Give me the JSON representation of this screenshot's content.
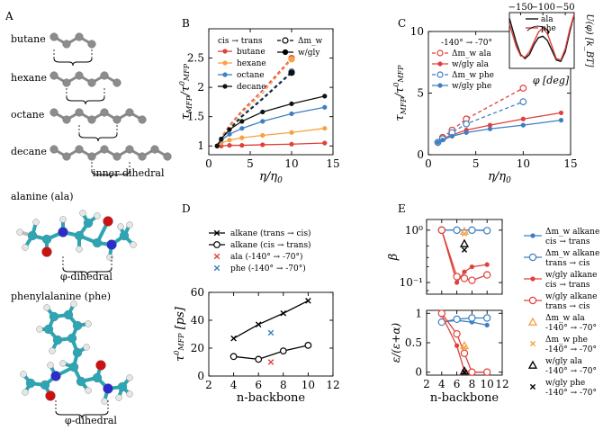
{
  "panels": {
    "A": {
      "label": "A",
      "alkanes": [
        {
          "name": "butane",
          "atoms": 4,
          "span": [
            0,
            3
          ]
        },
        {
          "name": "hexane",
          "atoms": 6,
          "span": [
            1,
            4
          ]
        },
        {
          "name": "octane",
          "atoms": 8,
          "span": [
            2,
            5
          ]
        },
        {
          "name": "decane",
          "atoms": 10,
          "span": [
            3,
            6
          ]
        }
      ],
      "inner_label": "inner dihedral",
      "ala_title": "alanine (ala)",
      "phe_title": "phenylalanine (phe)",
      "phi_label": "φ-dihedral"
    }
  },
  "chart_data": [
    {
      "id": "B",
      "panel_label": "B",
      "type": "line",
      "xlabel": "η/η₀",
      "ylabel": "τ_MFP/τ⁰_MFP",
      "xlim": [
        0,
        15
      ],
      "ylim": [
        0.85,
        3.0
      ],
      "xticks": [
        0,
        5,
        10,
        15
      ],
      "yticks": [
        1,
        1.5,
        2,
        2.5
      ],
      "legend_title": "cis → trans",
      "legend_style": [
        "Δm_w",
        "w/gly"
      ],
      "series": [
        {
          "name": "butane",
          "color": "#e0413a",
          "x": [
            1,
            1.5,
            2.5,
            4,
            6.5,
            10,
            14
          ],
          "y": [
            1.0,
            1.0,
            1.01,
            1.01,
            1.02,
            1.03,
            1.05
          ],
          "dashed_x": [
            1,
            1.5,
            2.5,
            4,
            6.5,
            10
          ],
          "dashed_y": [
            1.0,
            1.15,
            1.35,
            1.6,
            1.95,
            2.5
          ]
        },
        {
          "name": "hexane",
          "color": "#f6a243",
          "x": [
            1,
            1.5,
            2.5,
            4,
            6.5,
            10,
            14
          ],
          "y": [
            1.0,
            1.05,
            1.1,
            1.14,
            1.18,
            1.23,
            1.3
          ],
          "dashed_x": [
            1,
            1.5,
            2.5,
            4,
            6.5,
            10
          ],
          "dashed_y": [
            1.0,
            1.14,
            1.33,
            1.57,
            1.9,
            2.48
          ]
        },
        {
          "name": "octane",
          "color": "#3f7fc1",
          "x": [
            1,
            1.5,
            2.5,
            4,
            6.5,
            10,
            14
          ],
          "y": [
            1.0,
            1.1,
            1.2,
            1.3,
            1.42,
            1.55,
            1.66
          ],
          "dashed_x": [
            1,
            1.5,
            2.5,
            4,
            6.5,
            10
          ],
          "dashed_y": [
            1.0,
            1.12,
            1.3,
            1.52,
            1.82,
            2.27
          ]
        },
        {
          "name": "decane",
          "color": "#111111",
          "x": [
            1,
            1.5,
            2.5,
            4,
            6.5,
            10,
            14
          ],
          "y": [
            1.0,
            1.12,
            1.28,
            1.42,
            1.58,
            1.72,
            1.85
          ],
          "dashed_x": [
            1,
            1.5,
            2.5,
            4,
            6.5,
            10
          ],
          "dashed_y": [
            1.0,
            1.12,
            1.28,
            1.5,
            1.8,
            2.25
          ]
        }
      ]
    },
    {
      "id": "C",
      "panel_label": "C",
      "type": "line",
      "xlabel": "η/η₀",
      "ylabel": "τ_MFP/τ⁰_MFP",
      "xlim": [
        0,
        15
      ],
      "ylim": [
        0,
        10
      ],
      "xticks": [
        0,
        5,
        10,
        15
      ],
      "yticks": [
        0,
        5,
        10
      ],
      "legend_title": "-140° → -70°",
      "series": [
        {
          "name": "Δm_w ala",
          "color": "#e0413a",
          "dashed": true,
          "marker": "open",
          "x": [
            1,
            1.5,
            2.5,
            4,
            10
          ],
          "y": [
            1.0,
            1.4,
            2.0,
            2.9,
            5.4
          ]
        },
        {
          "name": "w/gly ala",
          "color": "#e0413a",
          "dashed": false,
          "marker": "filled",
          "x": [
            1,
            1.5,
            2.5,
            4,
            6.5,
            10,
            14
          ],
          "y": [
            1.0,
            1.3,
            1.6,
            2.0,
            2.4,
            2.9,
            3.4
          ]
        },
        {
          "name": "Δm_w phe",
          "color": "#3f7fc1",
          "dashed": true,
          "marker": "open",
          "x": [
            1,
            1.5,
            2.5,
            4,
            10
          ],
          "y": [
            1.0,
            1.3,
            1.8,
            2.5,
            4.3
          ]
        },
        {
          "name": "w/gly phe",
          "color": "#3f7fc1",
          "dashed": false,
          "marker": "filled",
          "x": [
            1,
            1.5,
            2.5,
            4,
            6.5,
            10,
            14
          ],
          "y": [
            1.0,
            1.2,
            1.5,
            1.8,
            2.1,
            2.4,
            2.8
          ]
        }
      ],
      "inset": {
        "xlabel": "φ [deg]",
        "ylabel": "U(φ) [k_BT]",
        "xlim": [
          -175,
          -30
        ],
        "xticks": [
          -150,
          -100,
          -50
        ],
        "ylim": [
          0,
          4
        ],
        "series": [
          {
            "name": "ala",
            "color": "#111111",
            "x": [
              -175,
              -160,
              -150,
              -140,
              -130,
              -120,
              -110,
              -100,
              -90,
              -80,
              -70,
              -60,
              -50,
              -40,
              -30
            ],
            "y": [
              3.6,
              1.9,
              1.0,
              0.7,
              1.0,
              1.7,
              2.2,
              2.3,
              2.0,
              1.3,
              0.6,
              0.5,
              1.2,
              2.6,
              3.9
            ]
          },
          {
            "name": "phe",
            "color": "#e0413a",
            "x": [
              -175,
              -160,
              -150,
              -140,
              -130,
              -120,
              -110,
              -100,
              -90,
              -80,
              -70,
              -60,
              -50,
              -40,
              -30
            ],
            "y": [
              3.2,
              1.6,
              0.9,
              0.8,
              1.2,
              1.9,
              2.6,
              2.9,
              2.5,
              1.6,
              0.7,
              0.6,
              1.4,
              2.8,
              3.9
            ]
          }
        ]
      }
    },
    {
      "id": "D",
      "panel_label": "D",
      "type": "line",
      "xlabel": "n-backbone",
      "ylabel": "τ⁰_MFP [ps]",
      "xlim": [
        2,
        12
      ],
      "ylim": [
        0,
        60
      ],
      "xticks": [
        2,
        4,
        6,
        8,
        10,
        12
      ],
      "yticks": [
        0,
        20,
        40,
        60
      ],
      "series": [
        {
          "name": "alkane (trans → cis)",
          "color": "#000000",
          "marker": "x",
          "x": [
            4,
            6,
            8,
            10
          ],
          "y": [
            27,
            37,
            45,
            54
          ]
        },
        {
          "name": "alkane (cis → trans)",
          "color": "#000000",
          "marker": "o",
          "x": [
            4,
            6,
            8,
            10
          ],
          "y": [
            14,
            12,
            18,
            22
          ]
        },
        {
          "name": "ala (-140° → -70°)",
          "color": "#e0413a",
          "marker": "x",
          "x": [
            7
          ],
          "y": [
            10
          ]
        },
        {
          "name": "phe (-140° → -70°)",
          "color": "#3f7fc1",
          "marker": "x",
          "x": [
            7
          ],
          "y": [
            31
          ]
        }
      ]
    },
    {
      "id": "E",
      "panel_label": "E",
      "type": "line",
      "xlabel": "n-backbone",
      "top": {
        "ylabel": "β",
        "yscale": "log",
        "ylim": [
          0.06,
          1.6
        ],
        "yticks": [
          "10⁰",
          "10⁻¹"
        ],
        "series": [
          {
            "key": "mw_ct",
            "x": [
              4,
              6,
              8,
              10
            ],
            "y": [
              1.0,
              1.0,
              1.0,
              1.0
            ]
          },
          {
            "key": "mw_tc",
            "x": [
              4,
              6,
              8,
              10
            ],
            "y": [
              1.0,
              1.0,
              1.0,
              0.98
            ]
          },
          {
            "key": "gly_ct",
            "x": [
              4,
              6,
              7,
              8,
              10
            ],
            "y": [
              1.0,
              0.1,
              0.16,
              0.2,
              0.22
            ]
          },
          {
            "key": "gly_tc",
            "x": [
              4,
              6,
              7,
              8,
              10
            ],
            "y": [
              1.0,
              0.13,
              0.12,
              0.11,
              0.14
            ]
          },
          {
            "key": "mw_ala",
            "x": [
              7
            ],
            "y": [
              0.95
            ]
          },
          {
            "key": "mw_phe",
            "x": [
              7
            ],
            "y": [
              0.85
            ]
          },
          {
            "key": "gly_ala",
            "x": [
              7
            ],
            "y": [
              0.55
            ]
          },
          {
            "key": "gly_phe",
            "x": [
              7
            ],
            "y": [
              0.42
            ]
          }
        ]
      },
      "bottom": {
        "ylabel": "ε/(ε+α)",
        "ylim": [
          -0.05,
          1.05
        ],
        "yticks": [
          0,
          0.5,
          1
        ],
        "xticks": [
          2,
          4,
          6,
          8,
          10,
          12
        ],
        "xlim": [
          2,
          12
        ],
        "series": [
          {
            "key": "mw_ct",
            "x": [
              4,
              6,
              8,
              10
            ],
            "y": [
              0.85,
              0.88,
              0.85,
              0.8
            ]
          },
          {
            "key": "mw_tc",
            "x": [
              4,
              6,
              8,
              10
            ],
            "y": [
              0.85,
              0.9,
              0.92,
              0.92
            ]
          },
          {
            "key": "gly_ct",
            "x": [
              4,
              6,
              7,
              8,
              10
            ],
            "y": [
              0.97,
              0.45,
              0.02,
              0.0,
              0.0
            ]
          },
          {
            "key": "gly_tc",
            "x": [
              4,
              6,
              7,
              8,
              10
            ],
            "y": [
              1.0,
              0.65,
              0.32,
              0.0,
              0.0
            ]
          },
          {
            "key": "mw_ala",
            "x": [
              7
            ],
            "y": [
              0.45
            ]
          },
          {
            "key": "mw_phe",
            "x": [
              7
            ],
            "y": [
              0.42
            ]
          },
          {
            "key": "gly_ala",
            "x": [
              7
            ],
            "y": [
              0.02
            ]
          },
          {
            "key": "gly_phe",
            "x": [
              7
            ],
            "y": [
              0.0
            ]
          }
        ]
      },
      "legend": [
        {
          "key": "mw_ct",
          "color": "#3f7fc1",
          "style": "filled-line",
          "lines": [
            "Δm_w alkane",
            "cis → trans"
          ]
        },
        {
          "key": "mw_tc",
          "color": "#3f7fc1",
          "style": "open-line",
          "lines": [
            "Δm_w alkane",
            "trans → cis"
          ]
        },
        {
          "key": "gly_ct",
          "color": "#e0413a",
          "style": "filled-line",
          "lines": [
            "w/gly alkane",
            "cis → trans"
          ]
        },
        {
          "key": "gly_tc",
          "color": "#e0413a",
          "style": "open-line",
          "lines": [
            "w/gly alkane",
            "trans → cis"
          ]
        },
        {
          "key": "mw_ala",
          "color": "#f6a243",
          "style": "triangle",
          "lines": [
            "Δm_w ala",
            "-140° → -70°"
          ]
        },
        {
          "key": "mw_phe",
          "color": "#f6a243",
          "style": "x",
          "lines": [
            "Δm_w phe",
            "-140° → -70°"
          ]
        },
        {
          "key": "gly_ala",
          "color": "#000000",
          "style": "triangle",
          "lines": [
            "w/gly ala",
            "-140° → -70°"
          ]
        },
        {
          "key": "gly_phe",
          "color": "#000000",
          "style": "x",
          "lines": [
            "w/gly phe",
            "-140° → -70°"
          ]
        }
      ]
    }
  ]
}
